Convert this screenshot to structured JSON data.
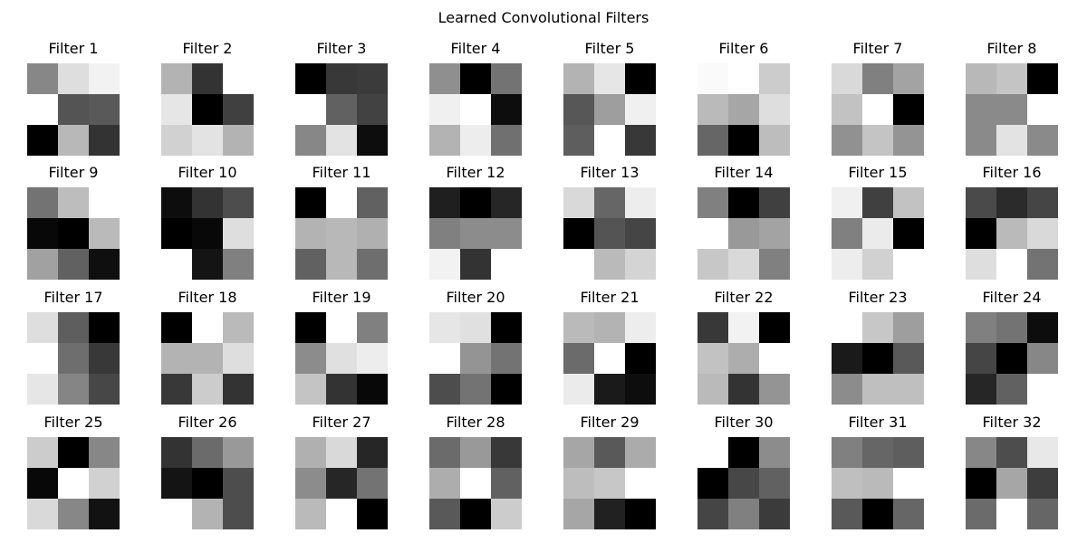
{
  "chart_data": {
    "type": "heatmap",
    "title": "Learned Convolutional Filters",
    "colormap": "gray",
    "grid": false,
    "filters": [
      {
        "label": "Filter 1",
        "values": [
          [
            0.53,
            0.87,
            0.95
          ],
          [
            1.0,
            0.33,
            0.35
          ],
          [
            0.0,
            0.72,
            0.2
          ]
        ]
      },
      {
        "label": "Filter 2",
        "values": [
          [
            0.7,
            0.2,
            1.0
          ],
          [
            0.9,
            0.0,
            0.25
          ],
          [
            0.82,
            0.89,
            0.7
          ]
        ]
      },
      {
        "label": "Filter 3",
        "values": [
          [
            0.0,
            0.22,
            0.23
          ],
          [
            1.0,
            0.38,
            0.26
          ],
          [
            0.53,
            0.89,
            0.05
          ]
        ]
      },
      {
        "label": "Filter 4",
        "values": [
          [
            0.56,
            0.0,
            0.45
          ],
          [
            0.94,
            1.0,
            0.05
          ],
          [
            0.7,
            0.93,
            0.44
          ]
        ]
      },
      {
        "label": "Filter 5",
        "values": [
          [
            0.7,
            0.9,
            0.0
          ],
          [
            0.34,
            0.62,
            0.94
          ],
          [
            0.37,
            1.0,
            0.22
          ]
        ]
      },
      {
        "label": "Filter 6",
        "values": [
          [
            0.98,
            1.0,
            0.8
          ],
          [
            0.73,
            0.65,
            0.87
          ],
          [
            0.4,
            0.0,
            0.74
          ]
        ]
      },
      {
        "label": "Filter 7",
        "values": [
          [
            0.85,
            0.5,
            0.64
          ],
          [
            0.76,
            1.0,
            0.0
          ],
          [
            0.57,
            0.77,
            0.58
          ]
        ]
      },
      {
        "label": "Filter 8",
        "values": [
          [
            0.72,
            0.77,
            0.0
          ],
          [
            0.54,
            0.54,
            1.0
          ],
          [
            0.54,
            0.89,
            0.54
          ]
        ]
      },
      {
        "label": "Filter 9",
        "values": [
          [
            0.45,
            0.74,
            1.0
          ],
          [
            0.03,
            0.0,
            0.73
          ],
          [
            0.63,
            0.38,
            0.06
          ]
        ]
      },
      {
        "label": "Filter 10",
        "values": [
          [
            0.05,
            0.2,
            0.3
          ],
          [
            0.0,
            0.03,
            0.87
          ],
          [
            1.0,
            0.08,
            0.5
          ]
        ]
      },
      {
        "label": "Filter 11",
        "values": [
          [
            0.0,
            1.0,
            0.38
          ],
          [
            0.7,
            0.72,
            0.69
          ],
          [
            0.38,
            0.72,
            0.43
          ]
        ]
      },
      {
        "label": "Filter 12",
        "values": [
          [
            0.12,
            0.0,
            0.15
          ],
          [
            0.5,
            0.55,
            0.55
          ],
          [
            0.95,
            0.2,
            1.0
          ]
        ]
      },
      {
        "label": "Filter 13",
        "values": [
          [
            0.85,
            0.4,
            0.93
          ],
          [
            0.0,
            0.33,
            0.27
          ],
          [
            1.0,
            0.73,
            0.83
          ]
        ]
      },
      {
        "label": "Filter 14",
        "values": [
          [
            0.5,
            0.0,
            0.25
          ],
          [
            1.0,
            0.6,
            0.64
          ],
          [
            0.78,
            0.85,
            0.5
          ]
        ]
      },
      {
        "label": "Filter 15",
        "values": [
          [
            0.94,
            0.25,
            0.76
          ],
          [
            0.5,
            0.92,
            0.0
          ],
          [
            0.93,
            0.82,
            1.0
          ]
        ]
      },
      {
        "label": "Filter 16",
        "values": [
          [
            0.29,
            0.17,
            0.27
          ],
          [
            0.0,
            0.73,
            0.85
          ],
          [
            0.87,
            1.0,
            0.45
          ]
        ]
      },
      {
        "label": "Filter 17",
        "values": [
          [
            0.87,
            0.37,
            0.0
          ],
          [
            1.0,
            0.43,
            0.22
          ],
          [
            0.9,
            0.52,
            0.28
          ]
        ]
      },
      {
        "label": "Filter 18",
        "values": [
          [
            0.0,
            1.0,
            0.73
          ],
          [
            0.7,
            0.7,
            0.87
          ],
          [
            0.22,
            0.8,
            0.2
          ]
        ]
      },
      {
        "label": "Filter 19",
        "values": [
          [
            0.0,
            1.0,
            0.5
          ],
          [
            0.55,
            0.88,
            0.93
          ],
          [
            0.77,
            0.2,
            0.03
          ]
        ]
      },
      {
        "label": "Filter 20",
        "values": [
          [
            0.9,
            0.88,
            0.0
          ],
          [
            1.0,
            0.58,
            0.45
          ],
          [
            0.3,
            0.45,
            0.0
          ]
        ]
      },
      {
        "label": "Filter 21",
        "values": [
          [
            0.73,
            0.7,
            0.93
          ],
          [
            0.42,
            1.0,
            0.0
          ],
          [
            0.92,
            0.1,
            0.05
          ]
        ]
      },
      {
        "label": "Filter 22",
        "values": [
          [
            0.22,
            0.95,
            0.0
          ],
          [
            0.76,
            0.68,
            1.0
          ],
          [
            0.73,
            0.2,
            0.58
          ]
        ]
      },
      {
        "label": "Filter 23",
        "values": [
          [
            1.0,
            0.78,
            0.62
          ],
          [
            0.1,
            0.0,
            0.35
          ],
          [
            0.55,
            0.75,
            0.75
          ]
        ]
      },
      {
        "label": "Filter 24",
        "values": [
          [
            0.5,
            0.45,
            0.05
          ],
          [
            0.27,
            0.0,
            0.53
          ],
          [
            0.15,
            0.38,
            1.0
          ]
        ]
      },
      {
        "label": "Filter 25",
        "values": [
          [
            0.8,
            0.0,
            0.53
          ],
          [
            0.03,
            1.0,
            0.82
          ],
          [
            0.85,
            0.53,
            0.07
          ]
        ]
      },
      {
        "label": "Filter 26",
        "values": [
          [
            0.2,
            0.42,
            0.6
          ],
          [
            0.08,
            0.0,
            0.3
          ],
          [
            1.0,
            0.7,
            0.3
          ]
        ]
      },
      {
        "label": "Filter 27",
        "values": [
          [
            0.69,
            0.85,
            0.15
          ],
          [
            0.55,
            0.15,
            0.45
          ],
          [
            0.73,
            1.0,
            0.0
          ]
        ]
      },
      {
        "label": "Filter 28",
        "values": [
          [
            0.42,
            0.6,
            0.22
          ],
          [
            0.68,
            1.0,
            0.38
          ],
          [
            0.35,
            0.0,
            0.8
          ]
        ]
      },
      {
        "label": "Filter 29",
        "values": [
          [
            0.65,
            0.35,
            0.67
          ],
          [
            0.74,
            0.78,
            1.0
          ],
          [
            0.65,
            0.13,
            0.0
          ]
        ]
      },
      {
        "label": "Filter 30",
        "values": [
          [
            1.0,
            0.0,
            0.55
          ],
          [
            0.0,
            0.28,
            0.38
          ],
          [
            0.27,
            0.5,
            0.23
          ]
        ]
      },
      {
        "label": "Filter 31",
        "values": [
          [
            0.5,
            0.4,
            0.37
          ],
          [
            0.75,
            0.73,
            1.0
          ],
          [
            0.35,
            0.0,
            0.4
          ]
        ]
      },
      {
        "label": "Filter 32",
        "values": [
          [
            0.53,
            0.3,
            0.91
          ],
          [
            0.0,
            0.65,
            0.24
          ],
          [
            0.42,
            1.0,
            0.4
          ]
        ]
      }
    ]
  }
}
